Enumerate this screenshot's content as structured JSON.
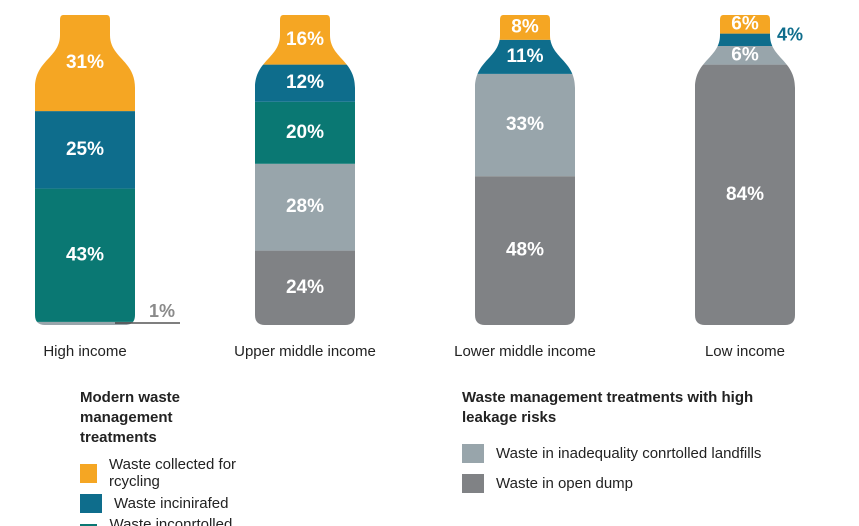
{
  "chart_data": {
    "type": "bottle",
    "categories": [
      "High income",
      "Upper middle income",
      "Lower middle income",
      "Low income"
    ],
    "series": [
      {
        "name": "Waste in open dump",
        "color": "#808285",
        "group": 1,
        "values": [
          null,
          24,
          48,
          84
        ],
        "value_labels": [
          null,
          "24%",
          "48%",
          "84%"
        ]
      },
      {
        "name": "Waste in inadequality conrtolled landfills",
        "color": "#98a5ab",
        "group": 1,
        "values": [
          1,
          28,
          33,
          6
        ],
        "value_labels": [
          "1%",
          "28%",
          "33%",
          "6%"
        ]
      },
      {
        "name": "Waste inconrtolled landfills",
        "color": "#0a7873",
        "group": 0,
        "values": [
          43,
          20,
          null,
          null
        ],
        "value_labels": [
          "43%",
          "20%",
          null,
          null
        ]
      },
      {
        "name": "Waste incinirafed",
        "color": "#0e6d8c",
        "group": 0,
        "values": [
          25,
          12,
          11,
          4
        ],
        "value_labels": [
          "25%",
          "12%",
          "11%",
          "4%"
        ]
      },
      {
        "name": "Waste collected for rcycling",
        "color": "#f5a623",
        "group": 0,
        "values": [
          31,
          16,
          8,
          6
        ],
        "value_labels": [
          "31%",
          "16%",
          "8%",
          "6%"
        ]
      }
    ],
    "legend_groups": [
      {
        "title": "Modern waste management treatments"
      },
      {
        "title": "Waste management treatments with high leakage risks"
      }
    ]
  }
}
